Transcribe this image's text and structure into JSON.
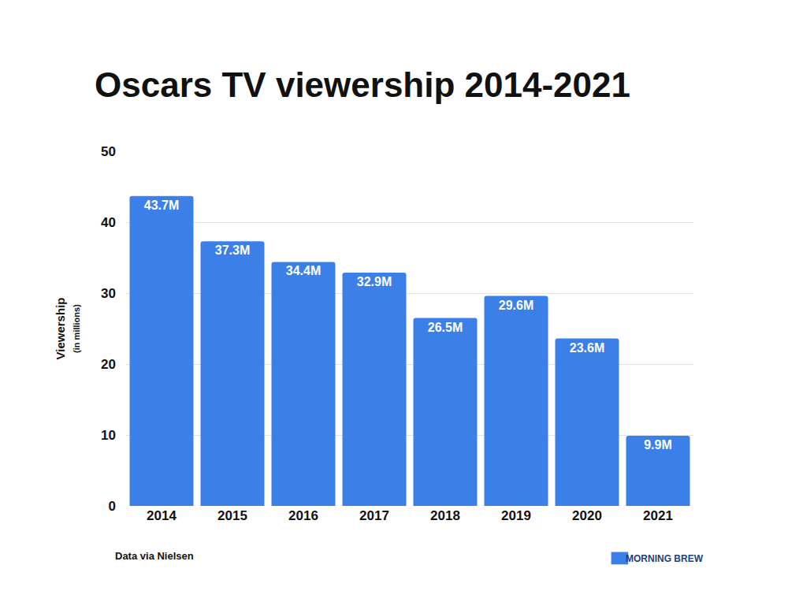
{
  "chart_data": {
    "type": "bar",
    "title": "Oscars TV viewership 2014-2021",
    "ylabel": "Viewership (in millions)",
    "categories": [
      "2014",
      "2015",
      "2016",
      "2017",
      "2018",
      "2019",
      "2020",
      "2021"
    ],
    "values": [
      43.7,
      37.3,
      34.4,
      32.9,
      26.5,
      29.6,
      23.6,
      9.9
    ],
    "value_labels": [
      "43.7M",
      "37.3M",
      "34.4M",
      "32.9M",
      "26.5M",
      "29.6M",
      "23.6M",
      "9.9M"
    ],
    "data_labels": true,
    "color": "#3b7fe8",
    "ylim": [
      0,
      50
    ],
    "yticks": [
      0,
      10,
      20,
      30,
      40,
      50
    ],
    "grid": true,
    "annotations": [
      "Data via Nielsen",
      "MORNING BREW"
    ]
  }
}
